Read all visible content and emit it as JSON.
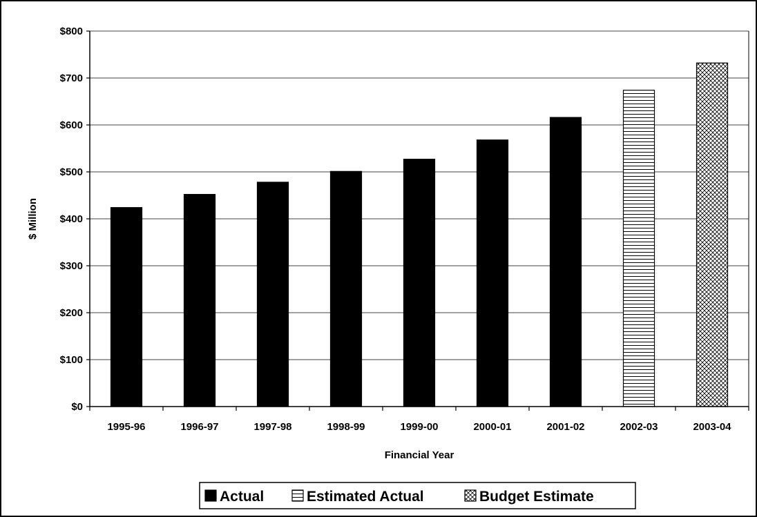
{
  "chart_data": {
    "type": "bar",
    "title": "",
    "xlabel": "Financial Year",
    "ylabel": "$ Million",
    "ylim": [
      0,
      800
    ],
    "ytick_step": 100,
    "ytick_labels": [
      "$0",
      "$100",
      "$200",
      "$300",
      "$400",
      "$500",
      "$600",
      "$700",
      "$800"
    ],
    "categories": [
      "1995-96",
      "1996-97",
      "1997-98",
      "1998-99",
      "1999-00",
      "2000-01",
      "2001-02",
      "2002-03",
      "2003-04"
    ],
    "series": [
      {
        "name": "Actual",
        "pattern": "solid",
        "values": [
          424,
          452,
          478,
          501,
          527,
          568,
          616,
          null,
          null
        ]
      },
      {
        "name": "Estimated Actual",
        "pattern": "horizontal-lines",
        "values": [
          null,
          null,
          null,
          null,
          null,
          null,
          null,
          674,
          null
        ]
      },
      {
        "name": "Budget Estimate",
        "pattern": "crosshatch",
        "values": [
          null,
          null,
          null,
          null,
          null,
          null,
          null,
          null,
          732
        ]
      }
    ],
    "grid": true,
    "legend_position": "bottom"
  },
  "colors": {
    "bar": "#000000",
    "background": "#ffffff"
  }
}
